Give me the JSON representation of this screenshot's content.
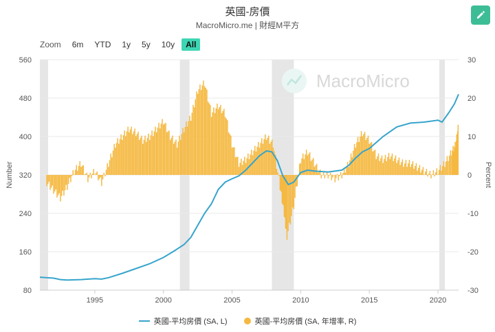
{
  "header": {
    "title": "英國-房價",
    "subtitle": "MacroMicro.me | 財經M平方"
  },
  "zoom": {
    "label": "Zoom",
    "buttons": [
      "6m",
      "YTD",
      "1y",
      "5y",
      "10y",
      "All"
    ],
    "active": "All"
  },
  "watermark": "MacroMicro",
  "colors": {
    "price_line": "#35a4cc",
    "yoy_bar": "#f5b942",
    "recession": "#e6e6e6",
    "accent": "#3dbd96"
  },
  "chart_data": {
    "type": "line+bar",
    "x_range": [
      1991.0,
      2021.5
    ],
    "x_ticks": [
      "1995",
      "2000",
      "2005",
      "2010",
      "2015",
      "2020"
    ],
    "y_left": {
      "label": "Number",
      "range": [
        80,
        560
      ],
      "ticks": [
        "80",
        "160",
        "240",
        "320",
        "400",
        "480",
        "560"
      ]
    },
    "y_right": {
      "label": "Percent",
      "range": [
        -30,
        30
      ],
      "ticks": [
        "-30",
        "-20",
        "-10",
        "0",
        "10",
        "20",
        "30"
      ]
    },
    "shaded_periods": [
      [
        1991.0,
        1991.6
      ],
      [
        2001.2,
        2001.9
      ],
      [
        2007.9,
        2009.5
      ],
      [
        2020.1,
        2020.5
      ]
    ],
    "series": [
      {
        "name": "英國-平均房價 (SA, L)",
        "axis": "left",
        "kind": "line",
        "x": [
          1991.0,
          1992.0,
          1992.5,
          1993.0,
          1994.0,
          1995.0,
          1995.5,
          1996.0,
          1997.0,
          1998.0,
          1999.0,
          2000.0,
          2000.8,
          2001.5,
          2002.0,
          2002.5,
          2003.0,
          2003.5,
          2004.0,
          2004.5,
          2005.0,
          2005.5,
          2006.0,
          2006.5,
          2007.0,
          2007.5,
          2007.9,
          2008.3,
          2008.7,
          2009.1,
          2009.5,
          2010.0,
          2010.5,
          2011.0,
          2012.0,
          2013.0,
          2013.5,
          2014.0,
          2014.5,
          2015.0,
          2016.0,
          2017.0,
          2018.0,
          2019.0,
          2020.0,
          2020.3,
          2020.8,
          2021.2,
          2021.5
        ],
        "y": [
          107,
          105,
          102,
          101,
          102,
          104,
          103,
          106,
          115,
          125,
          135,
          148,
          162,
          175,
          190,
          215,
          240,
          260,
          290,
          305,
          312,
          318,
          330,
          345,
          360,
          370,
          368,
          350,
          318,
          300,
          305,
          325,
          330,
          328,
          326,
          330,
          340,
          355,
          368,
          375,
          400,
          420,
          428,
          430,
          434,
          430,
          450,
          468,
          488
        ]
      },
      {
        "name": "英國-平均房價 (SA, 年增率, R)",
        "axis": "right",
        "kind": "bar",
        "x": [
          1991.5,
          1992.0,
          1992.5,
          1993.0,
          1993.5,
          1994.0,
          1994.5,
          1995.0,
          1995.5,
          1996.0,
          1996.5,
          1997.0,
          1997.5,
          1998.0,
          1998.5,
          1999.0,
          1999.5,
          2000.0,
          2000.5,
          2001.0,
          2001.5,
          2002.0,
          2002.5,
          2003.0,
          2003.5,
          2004.0,
          2004.5,
          2005.0,
          2005.5,
          2006.0,
          2006.5,
          2007.0,
          2007.5,
          2008.0,
          2008.5,
          2008.8,
          2009.0,
          2009.5,
          2010.0,
          2010.5,
          2011.0,
          2011.5,
          2012.0,
          2012.5,
          2013.0,
          2013.5,
          2014.0,
          2014.5,
          2015.0,
          2015.5,
          2016.0,
          2016.5,
          2017.0,
          2017.5,
          2018.0,
          2018.5,
          2019.0,
          2019.5,
          2020.0,
          2020.5,
          2021.0,
          2021.3,
          2021.5
        ],
        "y": [
          -2,
          -4,
          -6,
          -3,
          1,
          3,
          -1,
          1,
          -2,
          3,
          8,
          10,
          12,
          11,
          9,
          10,
          12,
          14,
          10,
          8,
          12,
          15,
          22,
          24,
          16,
          18,
          16,
          8,
          3,
          4,
          6,
          8,
          10,
          8,
          -3,
          -10,
          -16,
          -8,
          4,
          6,
          3,
          0,
          0,
          -1,
          0,
          3,
          8,
          11,
          9,
          5,
          4,
          5,
          4,
          3,
          3,
          2,
          1,
          0,
          1,
          3,
          6,
          8,
          13
        ]
      }
    ]
  },
  "legend": [
    {
      "label": "英國-平均房價 (SA, L)",
      "kind": "line"
    },
    {
      "label": "英國-平均房價 (SA, 年增率, R)",
      "kind": "dot"
    }
  ]
}
